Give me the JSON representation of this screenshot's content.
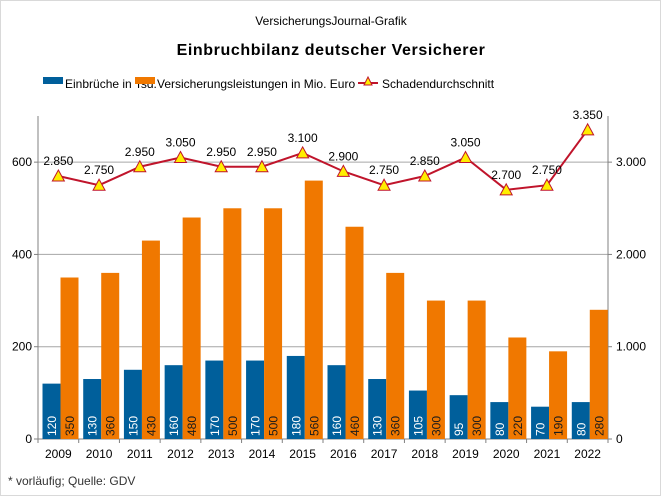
{
  "chart_data": {
    "type": "bar",
    "source_label": "VersicherungsJournal-Grafik",
    "title": "Einbruchbilanz deutscher Versicherer",
    "footnote": "* vorläufig;  Quelle: GDV",
    "categories": [
      "2009",
      "2010",
      "2011",
      "2012",
      "2013",
      "2014",
      "2015",
      "2016",
      "2017",
      "2018",
      "2019",
      "2020",
      "2021",
      "2022"
    ],
    "series": [
      {
        "name": "Einbrüche in Tsd.",
        "type": "bar",
        "axis": "left",
        "color": "#005f9b",
        "values": [
          120,
          130,
          150,
          160,
          170,
          170,
          180,
          160,
          130,
          105,
          95,
          80,
          70,
          80
        ]
      },
      {
        "name": "Versicherungsleistungen in Mio. Euro",
        "type": "bar",
        "axis": "left",
        "color": "#f07800",
        "values": [
          350,
          360,
          430,
          480,
          500,
          500,
          560,
          460,
          360,
          300,
          300,
          220,
          190,
          280
        ]
      },
      {
        "name": "Schadendurchschnitt",
        "type": "line",
        "axis": "right",
        "color": "#c0142b",
        "marker_color": "#ffee00",
        "values": [
          2850,
          2750,
          2950,
          3050,
          2950,
          2950,
          3100,
          2900,
          2750,
          2850,
          3050,
          2700,
          2750,
          3350
        ],
        "labels": [
          "2.850",
          "2.750",
          "2.950",
          "3.050",
          "2.950",
          "2.950",
          "3.100",
          "2.900",
          "2.750",
          "2.850",
          "3.050",
          "2.700",
          "2.750",
          "3.350"
        ]
      }
    ],
    "y_left": {
      "range": [
        0,
        700
      ],
      "ticks": [
        0,
        200,
        400,
        600
      ],
      "tick_labels": [
        "0",
        "200",
        "400",
        "600"
      ]
    },
    "y_right": {
      "range": [
        0,
        3500
      ],
      "ticks": [
        0,
        1000,
        2000,
        3000
      ],
      "tick_labels": [
        "0",
        "1.000",
        "2.000",
        "3.000"
      ]
    },
    "grid": true,
    "legend": "top"
  }
}
